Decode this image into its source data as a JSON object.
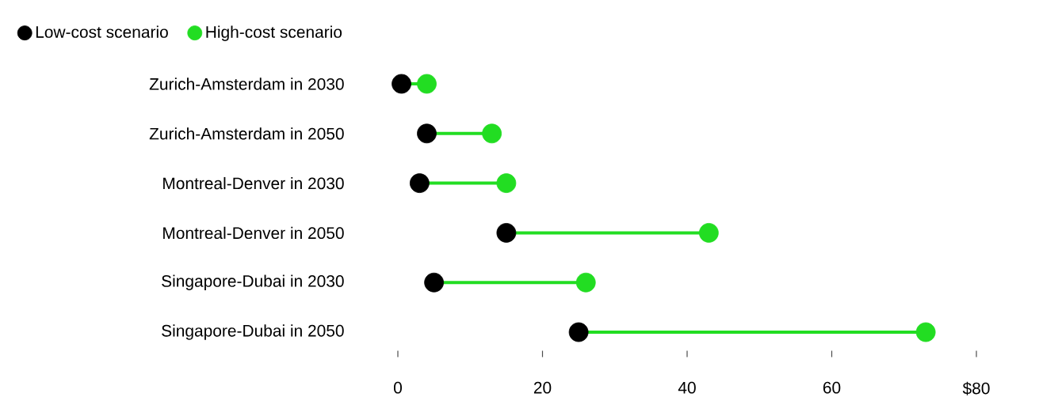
{
  "chart_data": {
    "type": "scatter",
    "orientation": "horizontal",
    "categories": [
      "Zurich-Amsterdam in 2030",
      "Zurich-Amsterdam in 2050",
      "Montreal-Denver in 2030",
      "Montreal-Denver in 2050",
      "Singapore-Dubai in 2030",
      "Singapore-Dubai in 2050"
    ],
    "series": [
      {
        "name": "Low-cost scenario",
        "color": "#000000",
        "values": [
          0.5,
          4,
          3,
          15,
          5,
          25
        ]
      },
      {
        "name": "High-cost scenario",
        "color": "#22dd22",
        "values": [
          4,
          13,
          15,
          43,
          26,
          73
        ]
      }
    ],
    "xlim": [
      0,
      80
    ],
    "xticks": [
      0,
      20,
      40,
      60,
      {
        "value": 80,
        "label": "$80"
      }
    ],
    "grid": false,
    "legend": "top left",
    "marker": "circle"
  }
}
